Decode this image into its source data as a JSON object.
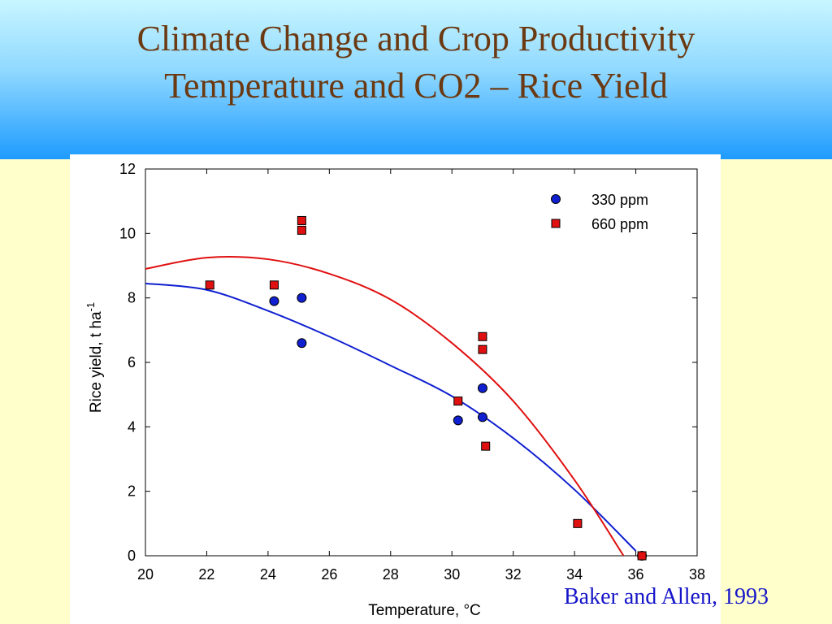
{
  "slide": {
    "title_line1": "Climate Change and Crop Productivity",
    "title_line2": "Temperature and CO2 – Rice Yield",
    "citation": "Baker and Allen, 1993"
  },
  "chart_data": {
    "type": "scatter",
    "xlabel": "Temperature, °C",
    "ylabel": "Rice yield, t ha",
    "ylabel_superscript": "-1",
    "xlim": [
      20,
      38
    ],
    "ylim": [
      0,
      12
    ],
    "xticks": [
      20,
      22,
      24,
      26,
      28,
      30,
      32,
      34,
      36,
      38
    ],
    "yticks": [
      0,
      2,
      4,
      6,
      8,
      10,
      12
    ],
    "grid": false,
    "legend_position": "top-right",
    "series": [
      {
        "name": "330 ppm",
        "marker": "circle",
        "color": "#1020d0",
        "points": [
          {
            "x": 24.2,
            "y": 7.9
          },
          {
            "x": 25.1,
            "y": 8.0
          },
          {
            "x": 25.1,
            "y": 6.6
          },
          {
            "x": 30.2,
            "y": 4.2
          },
          {
            "x": 31.0,
            "y": 5.2
          },
          {
            "x": 31.0,
            "y": 4.3
          },
          {
            "x": 36.2,
            "y": 0.0
          }
        ],
        "fit_curve": [
          {
            "x": 20,
            "y": 8.45
          },
          {
            "x": 22,
            "y": 8.25
          },
          {
            "x": 24,
            "y": 7.6
          },
          {
            "x": 26,
            "y": 6.8
          },
          {
            "x": 28,
            "y": 5.9
          },
          {
            "x": 30,
            "y": 4.95
          },
          {
            "x": 32,
            "y": 3.65
          },
          {
            "x": 34,
            "y": 2.05
          },
          {
            "x": 36,
            "y": 0.15
          }
        ]
      },
      {
        "name": "660 ppm",
        "marker": "square",
        "color": "#e01010",
        "points": [
          {
            "x": 22.1,
            "y": 8.4
          },
          {
            "x": 24.2,
            "y": 8.4
          },
          {
            "x": 25.1,
            "y": 10.4
          },
          {
            "x": 25.1,
            "y": 10.1
          },
          {
            "x": 30.2,
            "y": 4.8
          },
          {
            "x": 31.0,
            "y": 6.8
          },
          {
            "x": 31.0,
            "y": 6.4
          },
          {
            "x": 31.1,
            "y": 3.4
          },
          {
            "x": 34.1,
            "y": 1.0
          },
          {
            "x": 36.2,
            "y": 0.0
          }
        ],
        "fit_curve": [
          {
            "x": 20,
            "y": 8.9
          },
          {
            "x": 22,
            "y": 9.25
          },
          {
            "x": 24,
            "y": 9.2
          },
          {
            "x": 26,
            "y": 8.75
          },
          {
            "x": 28,
            "y": 7.95
          },
          {
            "x": 30,
            "y": 6.6
          },
          {
            "x": 32,
            "y": 4.8
          },
          {
            "x": 34,
            "y": 2.35
          },
          {
            "x": 35.6,
            "y": 0.0
          }
        ]
      }
    ]
  }
}
